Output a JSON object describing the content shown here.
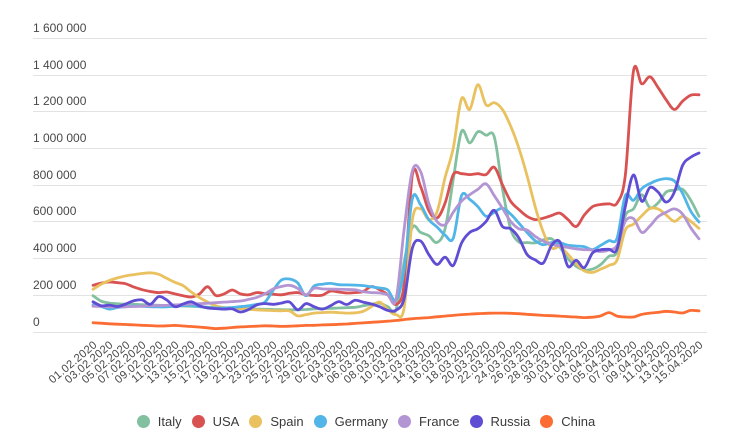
{
  "chart_data": {
    "type": "line",
    "title": "",
    "grid": true,
    "legend_position": "bottom",
    "y_range": [
      0,
      1600000
    ],
    "y_ticks": [
      "1 600 000",
      "1 400 000",
      "1 200 000",
      "1 000 000",
      "800 000",
      "600 000",
      "400 000",
      "200 000",
      "0"
    ],
    "x_start_date": "01.02.2020",
    "x_end_date": "15.04.2020",
    "x_step_days": 1,
    "x_tick_every": 2,
    "x_labels": [
      "01.02.2020",
      "03.02.2020",
      "05.02.2020",
      "07.02.2020",
      "09.02.2020",
      "11.02.2020",
      "13.02.2020",
      "15.02.2020",
      "17.02.2020",
      "19.02.2020",
      "21.02.2020",
      "23.02.2020",
      "25.02.2020",
      "27.02.2020",
      "29.02.2020",
      "02.03.2020",
      "04.03.2020",
      "06.03.2020",
      "08.03.2020",
      "10.03.2020",
      "12.03.2020",
      "14.03.2020",
      "16.03.2020",
      "18.03.2020",
      "20.03.2020",
      "22.03.2020",
      "24.03.2020",
      "26.03.2020",
      "28.03.2020",
      "30.03.2020",
      "01.04.2020",
      "03.04.2020",
      "05.04.2020",
      "07.04.2020",
      "09.04.2020",
      "11.04.2020",
      "13.04.2020",
      "15.04.2020"
    ],
    "series": [
      {
        "name": "Italy",
        "color": "#82c09f",
        "values": [
          195000,
          165000,
          155000,
          151000,
          149000,
          148000,
          146000,
          144000,
          143000,
          141000,
          140000,
          139000,
          138000,
          135000,
          133000,
          131000,
          130000,
          128000,
          126000,
          124000,
          122000,
          121000,
          120000,
          119000,
          118000,
          118000,
          120000,
          123000,
          125000,
          126000,
          128000,
          130000,
          132000,
          140000,
          148000,
          155000,
          135000,
          118000,
          380000,
          568000,
          540000,
          522000,
          485000,
          560000,
          830000,
          1090000,
          1028000,
          1089000,
          1070000,
          1060000,
          780000,
          560000,
          488000,
          485000,
          483000,
          500000,
          505000,
          460000,
          395000,
          355000,
          335000,
          340000,
          365000,
          410000,
          435000,
          630000,
          668000,
          745000,
          675000,
          700000,
          760000,
          770000,
          775000,
          715000,
          628000
        ]
      },
      {
        "name": "USA",
        "color": "#d95252",
        "values": [
          252000,
          264000,
          270000,
          266000,
          260000,
          242000,
          228000,
          218000,
          212000,
          215000,
          205000,
          195000,
          188000,
          205000,
          244000,
          196000,
          205000,
          226000,
          205000,
          200000,
          212000,
          206000,
          203000,
          200000,
          208000,
          212000,
          200000,
          196000,
          198000,
          220000,
          215000,
          210000,
          212000,
          218000,
          245000,
          228000,
          200000,
          148000,
          260000,
          855000,
          790000,
          660000,
          618000,
          700000,
          855000,
          860000,
          855000,
          860000,
          855000,
          895000,
          800000,
          710000,
          665000,
          628000,
          610000,
          618000,
          632000,
          645000,
          610000,
          572000,
          635000,
          680000,
          692000,
          696000,
          700000,
          850000,
          1420000,
          1350000,
          1388000,
          1330000,
          1262000,
          1210000,
          1255000,
          1288000,
          1290000
        ]
      },
      {
        "name": "Spain",
        "color": "#e9c15f",
        "values": [
          230000,
          258000,
          278000,
          292000,
          303000,
          310000,
          316000,
          320000,
          312000,
          290000,
          268000,
          250000,
          215000,
          185000,
          160000,
          140000,
          130000,
          127000,
          124000,
          121000,
          118000,
          116000,
          114000,
          113000,
          112000,
          85000,
          92000,
          100000,
          103000,
          105000,
          103000,
          100000,
          102000,
          110000,
          135000,
          160000,
          120000,
          92000,
          130000,
          610000,
          668000,
          610000,
          650000,
          840000,
          1000000,
          1268000,
          1210000,
          1345000,
          1235000,
          1247000,
          1210000,
          1120000,
          1000000,
          850000,
          680000,
          540000,
          455000,
          462000,
          420000,
          370000,
          330000,
          322000,
          340000,
          360000,
          390000,
          553000,
          585000,
          630000,
          670000,
          668000,
          635000,
          600000,
          628000,
          600000,
          562000
        ]
      },
      {
        "name": "Germany",
        "color": "#51b5e7",
        "values": [
          145000,
          136000,
          122000,
          131000,
          135000,
          139000,
          137000,
          135000,
          134000,
          134000,
          138000,
          141000,
          142000,
          136000,
          130000,
          128000,
          128000,
          131000,
          135000,
          140000,
          148000,
          160000,
          225000,
          280000,
          286000,
          265000,
          195000,
          248000,
          258000,
          262000,
          255000,
          254000,
          253000,
          250000,
          243000,
          237000,
          226000,
          172000,
          340000,
          725000,
          690000,
          610000,
          570000,
          525000,
          509000,
          740000,
          720000,
          680000,
          628000,
          650000,
          672000,
          640000,
          591000,
          540000,
          495000,
          473000,
          485000,
          484000,
          470000,
          466000,
          462000,
          446000,
          470000,
          495000,
          509000,
          740000,
          715000,
          778000,
          806000,
          825000,
          833000,
          820000,
          752000,
          655000,
          597000
        ]
      },
      {
        "name": "France",
        "color": "#b495d4",
        "values": [
          138000,
          136000,
          134000,
          134000,
          135000,
          136000,
          138000,
          140000,
          141000,
          143000,
          145000,
          147000,
          150000,
          152000,
          154000,
          157000,
          160000,
          163000,
          166000,
          175000,
          186000,
          205000,
          232000,
          245000,
          252000,
          235000,
          200000,
          236000,
          232000,
          231000,
          230000,
          229000,
          227000,
          217000,
          212000,
          210000,
          200000,
          174000,
          560000,
          876000,
          872000,
          700000,
          600000,
          582000,
          650000,
          710000,
          745000,
          775000,
          805000,
          740000,
          672000,
          600000,
          560000,
          553000,
          518000,
          492000,
          475000,
          466000,
          458000,
          450000,
          446000,
          444000,
          436000,
          444000,
          470000,
          600000,
          615000,
          540000,
          575000,
          625000,
          650000,
          668000,
          640000,
          565000,
          505000
        ]
      },
      {
        "name": "Russia",
        "color": "#5f4dd4",
        "values": [
          162000,
          140000,
          144000,
          136000,
          150000,
          168000,
          172000,
          148000,
          190000,
          172000,
          135000,
          150000,
          162000,
          140000,
          128000,
          125000,
          122000,
          123000,
          106000,
          120000,
          145000,
          152000,
          148000,
          155000,
          161000,
          118000,
          152000,
          135000,
          122000,
          140000,
          163000,
          147000,
          170000,
          160000,
          150000,
          135000,
          115000,
          116000,
          180000,
          455000,
          493000,
          420000,
          365000,
          405000,
          360000,
          482000,
          540000,
          560000,
          600000,
          660000,
          572000,
          560000,
          510000,
          420000,
          390000,
          374000,
          470000,
          489000,
          355000,
          388000,
          348000,
          428000,
          445000,
          448000,
          450000,
          680000,
          853000,
          710000,
          785000,
          760000,
          705000,
          760000,
          905000,
          950000,
          973000
        ]
      },
      {
        "name": "China",
        "color": "#fb6d33",
        "values": [
          48000,
          45000,
          42000,
          40000,
          38000,
          36000,
          34000,
          32000,
          30000,
          31000,
          33000,
          30000,
          27000,
          24000,
          20000,
          16000,
          18000,
          22000,
          25000,
          27000,
          29000,
          31000,
          30000,
          28000,
          29000,
          31000,
          33000,
          34000,
          36000,
          37000,
          39000,
          41000,
          44000,
          47000,
          50000,
          53000,
          56000,
          60000,
          65000,
          70000,
          73000,
          76000,
          80000,
          84000,
          88000,
          92000,
          95000,
          97000,
          99000,
          100000,
          100000,
          99000,
          97000,
          94000,
          91000,
          88000,
          86000,
          84000,
          81000,
          79000,
          76000,
          78000,
          85000,
          103000,
          84000,
          79000,
          79000,
          93000,
          100000,
          104000,
          110000,
          106000,
          101000,
          115000,
          112000
        ]
      }
    ]
  }
}
